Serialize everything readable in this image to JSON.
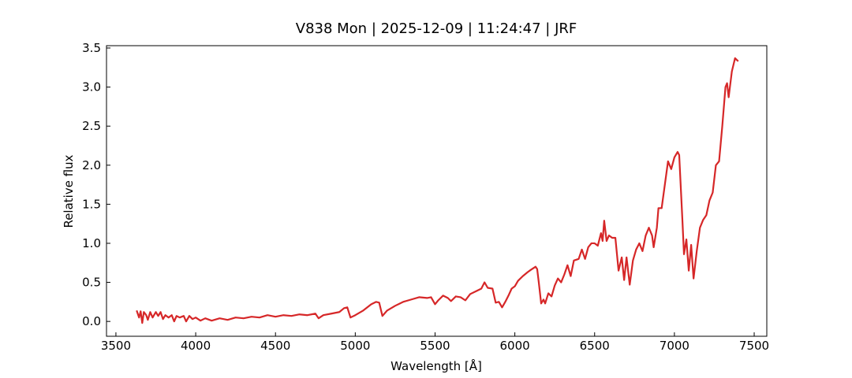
{
  "chart_data": {
    "type": "line",
    "title": "V838 Mon | 2025-12-09 | 11:24:47 | JRF",
    "x_label": "Wavelength [Å]",
    "y_label": "Relative flux",
    "xlim": [
      3441,
      7579
    ],
    "ylim": [
      -0.19,
      3.53
    ],
    "xticks": [
      3500,
      4000,
      4500,
      5000,
      5500,
      6000,
      6500,
      7000,
      7500
    ],
    "yticks": [
      {
        "value": 0,
        "label": "0.0"
      },
      {
        "value": 0.5,
        "label": "0.5"
      },
      {
        "value": 1,
        "label": "1.0"
      },
      {
        "value": 1.5,
        "label": "1.5"
      },
      {
        "value": 2,
        "label": "2.0"
      },
      {
        "value": 2.5,
        "label": "2.5"
      },
      {
        "value": 3,
        "label": "3.0"
      },
      {
        "value": 3.5,
        "label": "3.5"
      }
    ],
    "x": [
      3630,
      3645,
      3655,
      3665,
      3675,
      3690,
      3700,
      3715,
      3730,
      3750,
      3765,
      3780,
      3795,
      3810,
      3830,
      3850,
      3865,
      3880,
      3900,
      3925,
      3940,
      3960,
      3980,
      4000,
      4030,
      4060,
      4100,
      4150,
      4200,
      4250,
      4300,
      4350,
      4400,
      4450,
      4500,
      4550,
      4600,
      4650,
      4700,
      4750,
      4770,
      4800,
      4850,
      4900,
      4930,
      4950,
      4970,
      5000,
      5050,
      5100,
      5130,
      5150,
      5170,
      5200,
      5250,
      5300,
      5350,
      5400,
      5450,
      5475,
      5500,
      5520,
      5550,
      5580,
      5600,
      5630,
      5660,
      5690,
      5720,
      5760,
      5790,
      5810,
      5830,
      5860,
      5880,
      5900,
      5920,
      5940,
      5960,
      5980,
      6000,
      6020,
      6050,
      6080,
      6100,
      6130,
      6140,
      6150,
      6165,
      6180,
      6190,
      6210,
      6230,
      6250,
      6270,
      6290,
      6310,
      6330,
      6350,
      6370,
      6400,
      6420,
      6440,
      6460,
      6480,
      6500,
      6520,
      6540,
      6550,
      6560,
      6575,
      6590,
      6610,
      6630,
      6650,
      6670,
      6685,
      6700,
      6720,
      6740,
      6760,
      6780,
      6800,
      6820,
      6840,
      6860,
      6870,
      6890,
      6900,
      6920,
      6940,
      6960,
      6980,
      7000,
      7020,
      7030,
      7050,
      7060,
      7075,
      7090,
      7105,
      7120,
      7140,
      7160,
      7180,
      7200,
      7220,
      7240,
      7260,
      7280,
      7300,
      7320,
      7330,
      7340,
      7360,
      7380,
      7400
    ],
    "series": [
      {
        "color": "#d62728",
        "values": [
          0.14,
          0.05,
          0.13,
          -0.02,
          0.12,
          0.08,
          0.02,
          0.12,
          0.05,
          0.12,
          0.07,
          0.12,
          0.03,
          0.08,
          0.05,
          0.08,
          0.0,
          0.07,
          0.05,
          0.07,
          0.0,
          0.07,
          0.03,
          0.05,
          0.01,
          0.04,
          0.01,
          0.04,
          0.02,
          0.05,
          0.04,
          0.06,
          0.05,
          0.08,
          0.06,
          0.08,
          0.07,
          0.09,
          0.08,
          0.1,
          0.04,
          0.08,
          0.1,
          0.12,
          0.17,
          0.18,
          0.05,
          0.08,
          0.14,
          0.22,
          0.25,
          0.24,
          0.07,
          0.14,
          0.2,
          0.25,
          0.28,
          0.31,
          0.3,
          0.31,
          0.22,
          0.27,
          0.33,
          0.3,
          0.26,
          0.32,
          0.31,
          0.27,
          0.35,
          0.39,
          0.42,
          0.5,
          0.43,
          0.42,
          0.24,
          0.25,
          0.18,
          0.25,
          0.33,
          0.42,
          0.45,
          0.52,
          0.58,
          0.63,
          0.66,
          0.7,
          0.67,
          0.5,
          0.23,
          0.28,
          0.23,
          0.36,
          0.32,
          0.46,
          0.55,
          0.5,
          0.6,
          0.72,
          0.58,
          0.78,
          0.8,
          0.92,
          0.8,
          0.95,
          1.0,
          1.0,
          0.97,
          1.13,
          1.03,
          1.29,
          1.03,
          1.1,
          1.07,
          1.07,
          0.65,
          0.82,
          0.53,
          0.82,
          0.47,
          0.78,
          0.92,
          1.0,
          0.9,
          1.1,
          1.2,
          1.1,
          0.95,
          1.2,
          1.45,
          1.45,
          1.75,
          2.05,
          1.95,
          2.1,
          2.17,
          2.13,
          1.3,
          0.86,
          1.05,
          0.65,
          0.98,
          0.55,
          0.9,
          1.2,
          1.3,
          1.36,
          1.55,
          1.65,
          2.0,
          2.05,
          2.5,
          3.0,
          3.05,
          2.87,
          3.2,
          3.37,
          3.33
        ]
      }
    ]
  }
}
